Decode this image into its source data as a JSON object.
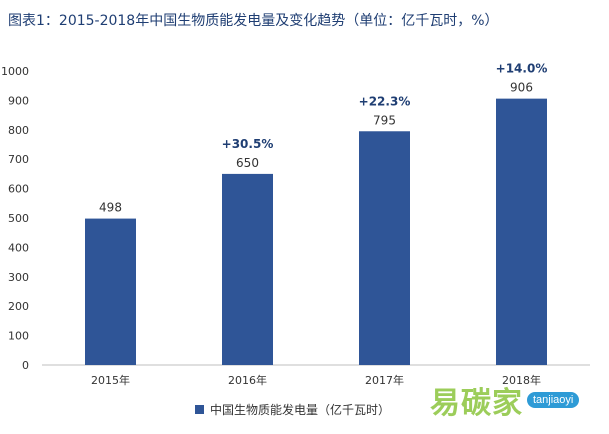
{
  "title": "图表1：2015-2018年中国生物质能发电量及变化趋势（单位：亿千瓦时，%）",
  "legend": {
    "label": "中国生物质能发电量（亿千瓦时）",
    "color": "#2f5597"
  },
  "watermark": {
    "main": "易碳家",
    "site": "tanjiaoyi"
  },
  "chart_data": {
    "type": "bar",
    "categories": [
      "2015年",
      "2016年",
      "2017年",
      "2018年"
    ],
    "series": [
      {
        "name": "中国生物质能发电量（亿千瓦时）",
        "values": [
          498,
          650,
          795,
          906
        ],
        "color": "#2f5597"
      }
    ],
    "growth_labels": [
      "",
      "+30.5%",
      "+22.3%",
      "+14.0%"
    ],
    "ylim": [
      0,
      1000
    ],
    "yticks": [
      0,
      100,
      200,
      300,
      400,
      500,
      600,
      700,
      800,
      900,
      1000
    ],
    "grid": false,
    "legend_position": "bottom"
  }
}
